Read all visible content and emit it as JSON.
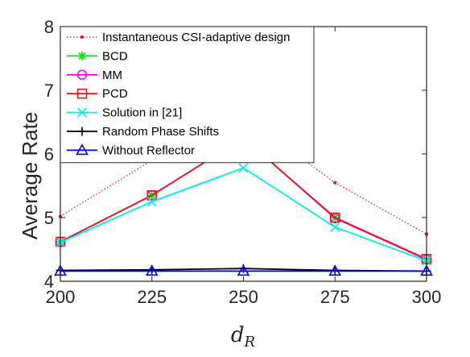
{
  "chart_data": {
    "type": "line",
    "xlabel_main": "d",
    "xlabel_sub": "R",
    "ylabel": "Average Rate",
    "x": [
      200,
      225,
      250,
      275,
      300
    ],
    "xlim": [
      200,
      300
    ],
    "ylim": [
      4,
      8
    ],
    "xticks": [
      200,
      225,
      250,
      275,
      300
    ],
    "yticks": [
      4,
      5,
      6,
      7,
      8
    ],
    "grid": false,
    "legend_position": "top-left",
    "series": [
      {
        "name": "Instantaneous CSI-adaptive design",
        "values": [
          5.02,
          5.9,
          6.6,
          5.55,
          4.74
        ],
        "color": "#e8191c",
        "line": "dotted",
        "marker": "dot"
      },
      {
        "name": "BCD",
        "values": [
          4.62,
          5.35,
          6.25,
          5.0,
          4.34
        ],
        "color": "#00e600",
        "line": "solid",
        "marker": "asterisk"
      },
      {
        "name": "MM",
        "values": [
          4.62,
          5.35,
          6.25,
          4.99,
          4.34
        ],
        "color": "#ff00ff",
        "line": "solid",
        "marker": "circle"
      },
      {
        "name": "PCD",
        "values": [
          4.62,
          5.35,
          6.25,
          5.0,
          4.35
        ],
        "color": "#e8191c",
        "line": "solid",
        "marker": "square"
      },
      {
        "name": "Solution in [21]",
        "values": [
          4.61,
          5.25,
          5.78,
          4.85,
          4.32
        ],
        "color": "#00eded",
        "line": "solid",
        "marker": "x"
      },
      {
        "name": "Random Phase Shifts",
        "values": [
          4.17,
          4.18,
          4.2,
          4.17,
          4.16
        ],
        "color": "#000000",
        "line": "solid",
        "marker": "plus"
      },
      {
        "name": "Without Reflector",
        "values": [
          4.16,
          4.16,
          4.16,
          4.16,
          4.16
        ],
        "color": "#0000ff",
        "line": "solid",
        "marker": "triangle"
      }
    ]
  }
}
